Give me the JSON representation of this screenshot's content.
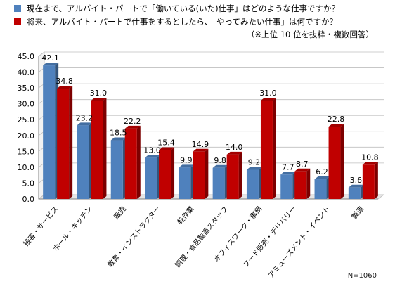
{
  "legend": {
    "series1_text": "現在まで、アルバイト・パートで「働いている(いた)仕事」はどのような仕事ですか？",
    "series2_text": "将来、アルバイト・パートで仕事をするとしたら、「やってみたい仕事」は何ですか？",
    "note": "（※上位 10 位を抜粋・複数回答）",
    "series1_color": "#4f81bd",
    "series2_color": "#c00000"
  },
  "footnote": "N=1060",
  "chart_data": {
    "type": "bar",
    "categories": [
      "接客・サービス",
      "ホール・キッチン",
      "販売",
      "教育・インストラクター",
      "軽作業",
      "調理・食品製造スタッフ",
      "オフィスワーク・事務",
      "フード販売・デリバリー",
      "アミューズメント・イベント",
      "製造"
    ],
    "series": [
      {
        "values": [
          42.1,
          23.2,
          18.5,
          13.0,
          9.9,
          9.8,
          9.2,
          7.7,
          6.2,
          3.6
        ],
        "color": "#4f81bd"
      },
      {
        "values": [
          34.8,
          31.0,
          22.2,
          15.4,
          14.9,
          14.0,
          31.0,
          8.7,
          22.8,
          10.8
        ],
        "color": "#c00000"
      }
    ],
    "ylim": [
      0,
      45
    ],
    "yticks": [
      "0.0",
      "5.0",
      "10.0",
      "15.0",
      "20.0",
      "25.0",
      "30.0",
      "35.0",
      "40.0",
      "45.0"
    ],
    "grid": true,
    "legend_position": "top"
  }
}
